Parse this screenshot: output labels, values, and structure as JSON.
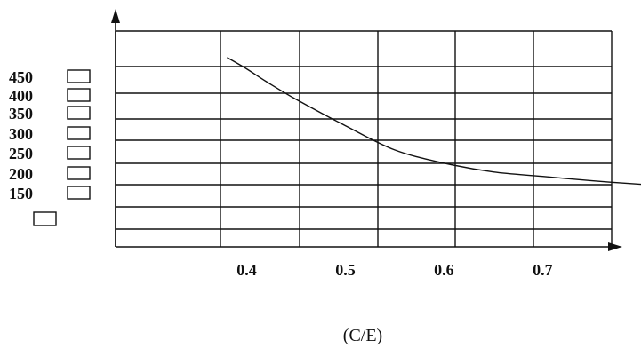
{
  "chart_data": {
    "type": "line",
    "title": "",
    "xlabel": "(C/E)",
    "ylabel": "",
    "x_ticks": [
      "0.4",
      "0.5",
      "0.6",
      "0.7"
    ],
    "y_ticks": [
      "450",
      "400",
      "350",
      "300",
      "250",
      "200",
      "150"
    ],
    "xlim": [
      0.267,
      0.77
    ],
    "ylim": [
      0,
      490
    ],
    "grid": true,
    "series": [
      {
        "x": [
          0.38,
          0.4,
          0.42,
          0.45,
          0.5,
          0.55,
          0.6,
          0.65,
          0.7,
          0.75,
          0.8
        ],
        "y": [
          430,
          404,
          375,
          335,
          275,
          220,
          190,
          170,
          160,
          150,
          142
        ]
      }
    ]
  },
  "colors": {
    "line": "#111111",
    "grid": "#111111",
    "axis": "#111111"
  }
}
